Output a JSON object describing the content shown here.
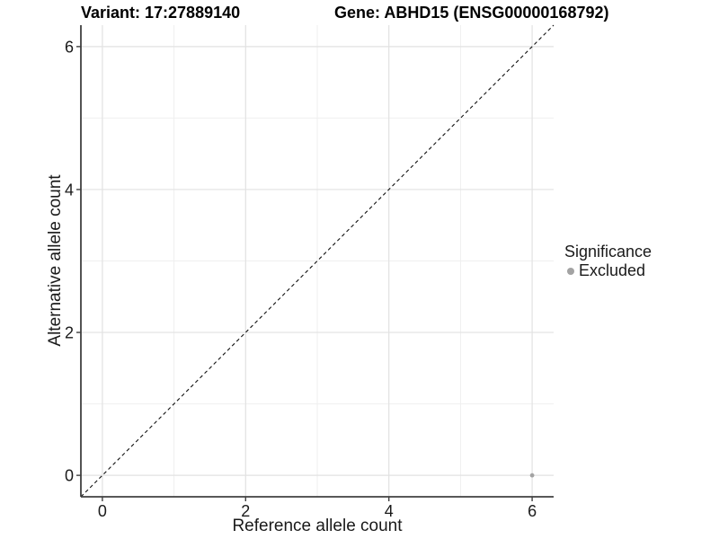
{
  "titles": {
    "variant": "Variant: 17:27889140",
    "gene": "Gene: ABHD15 (ENSG00000168792)"
  },
  "chart_data": {
    "type": "scatter",
    "xlabel": "Reference allele count",
    "ylabel": "Alternative allele count",
    "xlim": [
      -0.3,
      6.3
    ],
    "ylim": [
      -0.3,
      6.3
    ],
    "x_ticks": [
      0,
      2,
      4,
      6
    ],
    "y_ticks": [
      0,
      2,
      4,
      6
    ],
    "minor_gridlines": [
      1,
      3,
      5
    ],
    "grid": "on",
    "identity_line": {
      "slope": 1,
      "intercept": 0,
      "style": "dashed",
      "color": "#111111"
    },
    "series": [
      {
        "name": "Excluded",
        "color": "#a3a3a3",
        "points": [
          {
            "x": 6,
            "y": 0
          }
        ]
      }
    ],
    "legend": {
      "title": "Significance",
      "position": "right",
      "items": [
        {
          "label": "Excluded",
          "color": "#a3a3a3"
        }
      ]
    }
  },
  "colors": {
    "background": "#ffffff",
    "axis_line": "#404040",
    "grid_major": "#e2e2e2",
    "grid_minor": "#efefef",
    "tick_label": "#1a1a1a",
    "point": "#a3a3a3"
  }
}
